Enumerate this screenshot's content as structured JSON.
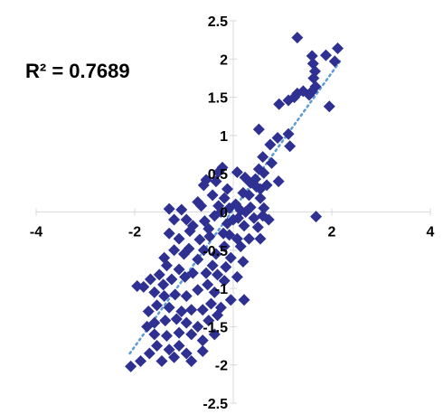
{
  "chart_data": {
    "type": "scatter",
    "annotation": "R² = 0.7689",
    "xlim": [
      -4,
      4
    ],
    "ylim": [
      -2.5,
      2.5
    ],
    "x_ticks": [
      -4,
      -2,
      0,
      2,
      4
    ],
    "x_tick_labels": [
      "-4",
      "-2",
      "0",
      "2",
      "4"
    ],
    "y_ticks": [
      -2.5,
      -2,
      -1.5,
      -1,
      -0.5,
      0,
      0.5,
      1,
      1.5,
      2,
      2.5
    ],
    "y_tick_labels": [
      "-2.5",
      "-2",
      "-1.5",
      "-1",
      "-0.5",
      "0",
      "0.5",
      "1",
      "1.5",
      "2",
      "2.5"
    ],
    "grid": false,
    "colors": {
      "points": "#2E3192",
      "trendline": "#5B9BD5",
      "axis": "#D9D9D9"
    },
    "trendline": {
      "style": "dotted",
      "x": [
        -2.1,
        2.2
      ],
      "y": [
        -1.85,
        2.0
      ]
    },
    "series": [
      {
        "points": [
          [
            1.3,
            2.28
          ],
          [
            2.12,
            2.14
          ],
          [
            1.6,
            2.04
          ],
          [
            1.88,
            2.05
          ],
          [
            2.06,
            1.97
          ],
          [
            1.62,
            1.94
          ],
          [
            1.66,
            1.84
          ],
          [
            1.63,
            1.75
          ],
          [
            1.67,
            1.64
          ],
          [
            1.6,
            1.58
          ],
          [
            1.54,
            1.53
          ],
          [
            1.42,
            1.58
          ],
          [
            1.3,
            1.55
          ],
          [
            1.24,
            1.5
          ],
          [
            1.12,
            1.46
          ],
          [
            0.93,
            1.41
          ],
          [
            1.95,
            1.38
          ],
          [
            0.52,
            1.08
          ],
          [
            1.12,
            1.02
          ],
          [
            0.9,
            0.97
          ],
          [
            1.15,
            0.86
          ],
          [
            0.75,
            0.88
          ],
          [
            0.6,
            0.72
          ],
          [
            0.78,
            0.64
          ],
          [
            0.52,
            0.56
          ],
          [
            0.62,
            0.51
          ],
          [
            0.45,
            0.43
          ],
          [
            0.35,
            0.38
          ],
          [
            0.55,
            0.3
          ],
          [
            0.2,
            0.25
          ],
          [
            0.92,
            0.4
          ],
          [
            0.68,
            0.35
          ],
          [
            0.47,
            0.33
          ],
          [
            0.32,
            0.22
          ],
          [
            0.24,
            0.45
          ],
          [
            0.08,
            0.52
          ],
          [
            -0.22,
            0.58
          ],
          [
            -0.3,
            0.52
          ],
          [
            -0.55,
            0.42
          ],
          [
            -0.6,
            0.35
          ],
          [
            -0.35,
            0.4
          ],
          [
            -0.42,
            0.22
          ],
          [
            -0.18,
            0.18
          ],
          [
            -0.3,
            0.08
          ],
          [
            -0.08,
            0.05
          ],
          [
            0.05,
            0.1
          ],
          [
            0.15,
            0.02
          ],
          [
            0.25,
            0.0
          ],
          [
            0.55,
            0.18
          ],
          [
            0.62,
            0.05
          ],
          [
            0.35,
            0.06
          ],
          [
            0.1,
            -0.08
          ],
          [
            0.22,
            -0.18
          ],
          [
            0.42,
            -0.08
          ],
          [
            0.6,
            -0.05
          ],
          [
            0.72,
            -0.1
          ],
          [
            0.5,
            -0.2
          ],
          [
            1.68,
            -0.06
          ],
          [
            -1.3,
            0.04
          ],
          [
            -1.05,
            0.03
          ],
          [
            -0.72,
            0.13
          ],
          [
            -0.38,
            -0.05
          ],
          [
            -0.58,
            -0.12
          ],
          [
            -0.82,
            -0.18
          ],
          [
            -0.95,
            -0.1
          ],
          [
            -1.2,
            -0.1
          ],
          [
            -0.12,
            -0.15
          ],
          [
            -0.2,
            -0.28
          ],
          [
            -0.08,
            -0.3
          ],
          [
            0.08,
            -0.35
          ],
          [
            0.15,
            -0.45
          ],
          [
            -0.48,
            -0.32
          ],
          [
            -0.68,
            -0.36
          ],
          [
            -0.88,
            -0.25
          ],
          [
            -1.3,
            -0.28
          ],
          [
            -1.1,
            -0.35
          ],
          [
            -0.9,
            -0.48
          ],
          [
            -0.6,
            -0.5
          ],
          [
            -0.35,
            -0.55
          ],
          [
            -0.18,
            -0.45
          ],
          [
            -0.05,
            -0.6
          ],
          [
            -0.15,
            -0.72
          ],
          [
            0.2,
            -0.65
          ],
          [
            -0.42,
            -0.7
          ],
          [
            -0.72,
            -0.62
          ],
          [
            -0.55,
            -0.8
          ],
          [
            -0.32,
            -0.82
          ],
          [
            -0.82,
            -0.8
          ],
          [
            -0.98,
            -0.85
          ],
          [
            -1.1,
            -0.75
          ],
          [
            -1.35,
            -0.7
          ],
          [
            -1.25,
            -0.88
          ],
          [
            -1.5,
            -0.82
          ],
          [
            -1.68,
            -0.88
          ],
          [
            -1.4,
            -0.6
          ],
          [
            -1.42,
            -0.95
          ],
          [
            -1.95,
            -0.97
          ],
          [
            -1.82,
            -0.98
          ],
          [
            -1.6,
            -1.05
          ],
          [
            -1.4,
            -1.1
          ],
          [
            -1.18,
            -1.08
          ],
          [
            -0.95,
            -1.1
          ],
          [
            -0.72,
            -1.02
          ],
          [
            -0.52,
            -0.95
          ],
          [
            -0.38,
            -1.05
          ],
          [
            -0.45,
            -1.2
          ],
          [
            -0.62,
            -1.28
          ],
          [
            -0.85,
            -1.28
          ],
          [
            -1.05,
            -1.3
          ],
          [
            -1.3,
            -1.25
          ],
          [
            -1.55,
            -1.22
          ],
          [
            -1.72,
            -1.3
          ],
          [
            -1.6,
            -1.45
          ],
          [
            -1.38,
            -1.42
          ],
          [
            -1.15,
            -1.4
          ],
          [
            -0.95,
            -1.45
          ],
          [
            -0.72,
            -1.5
          ],
          [
            -0.5,
            -1.42
          ],
          [
            -0.32,
            -1.35
          ],
          [
            -0.38,
            -1.6
          ],
          [
            -0.62,
            -1.68
          ],
          [
            -0.85,
            -1.6
          ],
          [
            -1.1,
            -1.58
          ],
          [
            -1.35,
            -1.62
          ],
          [
            -1.6,
            -1.6
          ],
          [
            -1.75,
            -1.5
          ],
          [
            -1.55,
            -1.75
          ],
          [
            -1.3,
            -1.8
          ],
          [
            -1.1,
            -1.75
          ],
          [
            -0.95,
            -1.85
          ],
          [
            -1.2,
            -1.9
          ],
          [
            -1.45,
            -1.95
          ],
          [
            -1.7,
            -1.85
          ],
          [
            -1.88,
            -1.95
          ],
          [
            -2.08,
            -2.02
          ],
          [
            -0.85,
            -1.95
          ],
          [
            -0.62,
            -1.82
          ],
          [
            -0.18,
            -0.9
          ],
          [
            0.08,
            -0.85
          ],
          [
            -0.05,
            -1.15
          ],
          [
            0.22,
            -1.15
          ],
          [
            -0.25,
            -1.25
          ],
          [
            0.55,
            -0.35
          ],
          [
            0.32,
            -0.35
          ],
          [
            -0.12,
            0.3
          ],
          [
            -0.65,
            0.08
          ],
          [
            -0.5,
            -0.22
          ],
          [
            -0.25,
            0.0
          ],
          [
            0.0,
            -0.1
          ],
          [
            -1.0,
            -0.55
          ],
          [
            -1.2,
            -0.5
          ]
        ]
      }
    ]
  }
}
